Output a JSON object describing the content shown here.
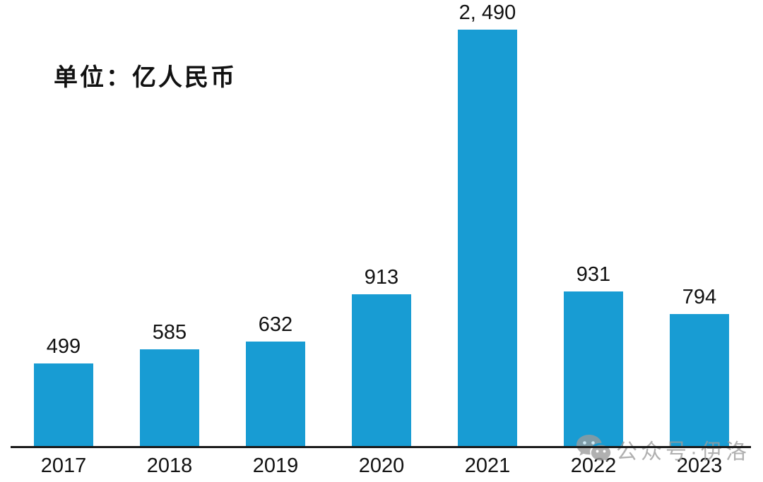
{
  "chart_data": {
    "type": "bar",
    "title": "",
    "unit_label": "单位：亿人民币",
    "categories": [
      "2017",
      "2018",
      "2019",
      "2020",
      "2021",
      "2022",
      "2023"
    ],
    "values": [
      499,
      585,
      632,
      913,
      2490,
      931,
      794
    ],
    "value_labels": [
      "499",
      "585",
      "632",
      "913",
      "2, 490",
      "931",
      "794"
    ],
    "xlabel": "",
    "ylabel": "",
    "ylim": [
      0,
      2490
    ],
    "grid": "off",
    "legend": "none",
    "bar_color": "#189CD3",
    "axis_color": "#1a1a1a",
    "label_color": "#111111"
  },
  "watermark": {
    "icon": "wechat-icon",
    "text": "公众号·伊洛",
    "color": "#9b9b9b"
  }
}
